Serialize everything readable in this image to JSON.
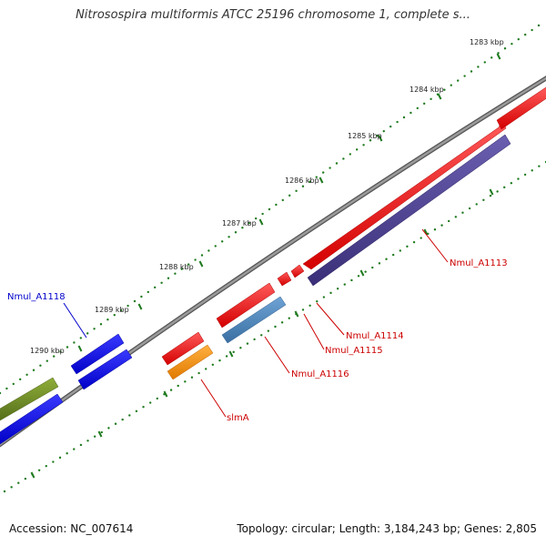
{
  "header": {
    "title": "Nitrosospira multiformis ATCC 25196 chromosome 1, complete s..."
  },
  "footer": {
    "accession": "Accession: NC_007614",
    "summary": "Topology: circular; Length: 3,184,243 bp; Genes: 2,805"
  },
  "scale": {
    "ticks": [
      {
        "label": "1283 kbp"
      },
      {
        "label": "1284 kbp"
      },
      {
        "label": "1285 kbp"
      },
      {
        "label": "1286 kbp"
      },
      {
        "label": "1287 kbp"
      },
      {
        "label": "1288 kbp"
      },
      {
        "label": "1289 kbp"
      },
      {
        "label": "1290 kbp"
      }
    ]
  },
  "genes": [
    {
      "name": "Nmul_A1113",
      "label_color": "#cc0000"
    },
    {
      "name": "Nmul_A1114",
      "label_color": "#cc0000"
    },
    {
      "name": "Nmul_A1115",
      "label_color": "#cc0000"
    },
    {
      "name": "Nmul_A1116",
      "label_color": "#cc0000"
    },
    {
      "name": "slmA",
      "label_color": "#cc0000"
    },
    {
      "name": "Nmul_A1118",
      "label_color": "#0000cc"
    }
  ],
  "colors": {
    "backbone": "#8a8a8a",
    "tick": "#1e7a1e",
    "forward_red": "#ee0000",
    "reverse_navy": "#4a3f8c",
    "reverse_steel": "#4a82b8",
    "reverse_orange": "#f39200",
    "blue": "#0000ee",
    "olive": "#6b8e23"
  }
}
